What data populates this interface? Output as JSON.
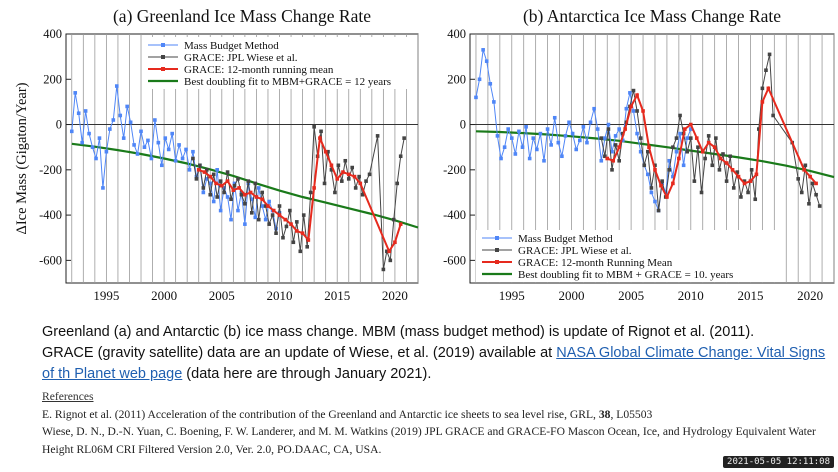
{
  "chart_data": [
    {
      "type": "line",
      "title": "(a)  Greenland Ice Mass Change Rate",
      "ylabel": "ΔIce Mass (Gigaton/Year)",
      "xlabel": "",
      "xlim": [
        1991.5,
        2022
      ],
      "ylim": [
        -700,
        400
      ],
      "xticks": [
        1995,
        2000,
        2005,
        2010,
        2015,
        2020
      ],
      "yticks": [
        400,
        200,
        0,
        -200,
        -400,
        -600
      ],
      "grid": "vertical lines each year, horizontal line at 0",
      "legend_position": "top-center",
      "series": [
        {
          "name": "Mass Budget Method",
          "color": "#4f86f7",
          "x": [
            1992.0,
            1992.3,
            1992.6,
            1992.9,
            1993.2,
            1993.5,
            1993.8,
            1994.1,
            1994.4,
            1994.7,
            1995.0,
            1995.3,
            1995.6,
            1995.9,
            1996.2,
            1996.5,
            1996.8,
            1997.1,
            1997.4,
            1997.7,
            1998.0,
            1998.3,
            1998.6,
            1998.9,
            1999.2,
            1999.5,
            1999.8,
            2000.1,
            2000.4,
            2000.7,
            2001.0,
            2001.3,
            2001.6,
            2001.9,
            2002.2,
            2002.5,
            2002.8,
            2003.1,
            2003.4,
            2003.7,
            2004.0,
            2004.3,
            2004.6,
            2004.9,
            2005.2,
            2005.5,
            2005.8,
            2006.1,
            2006.4,
            2006.7,
            2007.0,
            2007.3,
            2007.6,
            2007.9,
            2008.2,
            2008.5,
            2008.8,
            2009.1,
            2009.4,
            2009.7,
            2010.0
          ],
          "y": [
            -30,
            140,
            50,
            -80,
            60,
            -40,
            -100,
            -150,
            -60,
            -280,
            -120,
            -20,
            20,
            170,
            40,
            -60,
            80,
            10,
            -90,
            -130,
            -30,
            -100,
            -70,
            -150,
            20,
            -80,
            -180,
            -60,
            -110,
            -40,
            -160,
            -90,
            -150,
            -110,
            -200,
            -120,
            -230,
            -180,
            -300,
            -240,
            -260,
            -340,
            -200,
            -380,
            -280,
            -320,
            -420,
            -260,
            -380,
            -300,
            -440,
            -260,
            -330,
            -410,
            -280,
            -360,
            -420,
            -340,
            -380,
            -460,
            -390
          ]
        },
        {
          "name": "GRACE: JPL Wiese et al.",
          "color": "#444444",
          "x": [
            2002.5,
            2002.8,
            2003.1,
            2003.4,
            2003.7,
            2004.0,
            2004.3,
            2004.6,
            2004.9,
            2005.2,
            2005.5,
            2005.8,
            2006.1,
            2006.4,
            2006.7,
            2007.0,
            2007.3,
            2007.6,
            2007.9,
            2008.2,
            2008.5,
            2008.8,
            2009.1,
            2009.4,
            2009.7,
            2010.0,
            2010.3,
            2010.6,
            2010.9,
            2011.2,
            2011.5,
            2011.8,
            2012.1,
            2012.4,
            2012.7,
            2013.0,
            2013.3,
            2013.6,
            2013.9,
            2014.2,
            2014.5,
            2014.8,
            2015.1,
            2015.4,
            2015.7,
            2016.0,
            2016.3,
            2016.6,
            2016.9,
            2017.2,
            2017.5,
            2017.8,
            2018.5,
            2019.0,
            2019.3,
            2019.6,
            2019.9,
            2020.2,
            2020.5,
            2020.8
          ],
          "y": [
            -150,
            -240,
            -180,
            -280,
            -200,
            -310,
            -220,
            -320,
            -250,
            -300,
            -210,
            -330,
            -270,
            -240,
            -310,
            -350,
            -250,
            -390,
            -260,
            -420,
            -300,
            -360,
            -440,
            -400,
            -480,
            -360,
            -500,
            -450,
            -380,
            -520,
            -430,
            -560,
            -400,
            -540,
            -300,
            -10,
            -140,
            -30,
            -260,
            -120,
            -200,
            -300,
            -180,
            -250,
            -160,
            -240,
            -190,
            -280,
            -230,
            -310,
            -250,
            -220,
            -50,
            -640,
            -560,
            -600,
            -420,
            -260,
            -140,
            -60
          ]
        },
        {
          "name": "GRACE: 12-month running mean",
          "color": "#e62a1e",
          "x": [
            2003.0,
            2003.5,
            2004.0,
            2004.5,
            2005.0,
            2005.5,
            2006.0,
            2006.5,
            2007.0,
            2007.5,
            2008.0,
            2008.5,
            2009.0,
            2009.5,
            2010.0,
            2010.5,
            2011.0,
            2011.5,
            2012.0,
            2012.5,
            2013.0,
            2013.5,
            2014.0,
            2014.5,
            2015.0,
            2015.5,
            2016.0,
            2016.5,
            2017.0,
            2019.5,
            2020.0,
            2020.5
          ],
          "y": [
            -200,
            -210,
            -230,
            -260,
            -270,
            -250,
            -290,
            -280,
            -310,
            -300,
            -320,
            -330,
            -360,
            -380,
            -400,
            -420,
            -440,
            -470,
            -480,
            -510,
            -280,
            -60,
            -120,
            -180,
            -240,
            -210,
            -220,
            -230,
            -260,
            -560,
            -520,
            -440
          ]
        },
        {
          "name": "Best doubling fit to MBM+GRACE = 12 years",
          "color": "#1a7a1a",
          "x": [
            1992,
            1994,
            1996,
            1998,
            2000,
            2002,
            2004,
            2006,
            2008,
            2010,
            2012,
            2014,
            2016,
            2018,
            2020,
            2022
          ],
          "y": [
            -85,
            -98,
            -113,
            -130,
            -150,
            -172,
            -198,
            -227,
            -260,
            -292,
            -320,
            -345,
            -370,
            -395,
            -423,
            -455
          ]
        }
      ]
    },
    {
      "type": "line",
      "title": "(b)  Antarctica Ice Mass Change Rate",
      "ylabel": "",
      "xlabel": "",
      "xlim": [
        1991.5,
        2022
      ],
      "ylim": [
        -700,
        400
      ],
      "xticks": [
        1995,
        2000,
        2005,
        2010,
        2015,
        2020
      ],
      "yticks": [
        400,
        200,
        0,
        -200,
        -400,
        -600
      ],
      "grid": "vertical lines each year, horizontal line at 0",
      "legend_position": "bottom-center",
      "series": [
        {
          "name": "Mass Budget Method",
          "color": "#4f86f7",
          "x": [
            1992.0,
            1992.3,
            1992.6,
            1992.9,
            1993.2,
            1993.5,
            1993.8,
            1994.1,
            1994.4,
            1994.7,
            1995.0,
            1995.3,
            1995.6,
            1995.9,
            1996.2,
            1996.5,
            1996.8,
            1997.1,
            1997.4,
            1997.7,
            1998.0,
            1998.3,
            1998.6,
            1998.9,
            1999.2,
            1999.5,
            1999.8,
            2000.1,
            2000.4,
            2000.7,
            2001.0,
            2001.3,
            2001.6,
            2001.9,
            2002.2,
            2002.5,
            2002.8,
            2003.1,
            2003.4,
            2003.7,
            2004.0,
            2004.3,
            2004.6,
            2004.9,
            2005.2,
            2005.5,
            2005.8,
            2006.1,
            2006.4,
            2006.7,
            2007.0,
            2007.3,
            2007.6,
            2007.9,
            2008.2,
            2008.5,
            2008.8,
            2009.1,
            2009.4,
            2009.7,
            2010.0
          ],
          "y": [
            120,
            200,
            330,
            280,
            180,
            100,
            -50,
            -150,
            -100,
            -20,
            -60,
            -130,
            -30,
            -100,
            -10,
            -150,
            -60,
            -110,
            -40,
            -160,
            -20,
            -90,
            30,
            -80,
            -140,
            -50,
            10,
            -40,
            -110,
            -70,
            -10,
            -80,
            10,
            70,
            -20,
            -160,
            -60,
            0,
            -120,
            -50,
            -20,
            -70,
            70,
            140,
            60,
            -40,
            -120,
            -180,
            -220,
            -300,
            -340,
            -380,
            -260,
            -300,
            -160,
            -230,
            -120,
            -40,
            -180,
            -60,
            -20
          ]
        },
        {
          "name": "GRACE: JPL Wiese et al.",
          "color": "#444444",
          "x": [
            2002.5,
            2002.8,
            2003.1,
            2003.4,
            2003.7,
            2004.0,
            2004.3,
            2004.6,
            2004.9,
            2005.2,
            2005.5,
            2005.8,
            2006.1,
            2006.4,
            2006.7,
            2007.0,
            2007.3,
            2007.6,
            2007.9,
            2008.2,
            2008.5,
            2008.8,
            2009.1,
            2009.4,
            2009.7,
            2010.0,
            2010.3,
            2010.6,
            2010.9,
            2011.2,
            2011.5,
            2011.8,
            2012.1,
            2012.4,
            2012.7,
            2013.0,
            2013.3,
            2013.6,
            2013.9,
            2014.2,
            2014.5,
            2014.8,
            2015.1,
            2015.4,
            2015.7,
            2016.0,
            2016.3,
            2016.6,
            2016.9,
            2018.5,
            2019.0,
            2019.3,
            2019.6,
            2019.9,
            2020.2,
            2020.5,
            2020.8
          ],
          "y": [
            -60,
            -140,
            -20,
            -200,
            -90,
            -160,
            -40,
            10,
            80,
            150,
            60,
            -60,
            -180,
            -120,
            -280,
            -180,
            -380,
            -250,
            -320,
            -200,
            -100,
            -60,
            40,
            -40,
            -120,
            -60,
            -250,
            -100,
            -300,
            -150,
            -50,
            -180,
            -60,
            -200,
            -130,
            -250,
            -140,
            -280,
            -210,
            -320,
            -250,
            -300,
            -200,
            -330,
            -20,
            160,
            240,
            310,
            40,
            -80,
            -240,
            -300,
            -180,
            -350,
            -260,
            -310,
            -360
          ]
        },
        {
          "name": "GRACE: 12-month Running Mean",
          "color": "#e62a1e",
          "x": [
            2003.0,
            2003.5,
            2004.0,
            2004.5,
            2005.0,
            2005.5,
            2006.0,
            2006.5,
            2007.0,
            2007.5,
            2008.0,
            2008.5,
            2009.0,
            2009.5,
            2010.0,
            2010.5,
            2011.0,
            2011.5,
            2012.0,
            2012.5,
            2013.0,
            2013.5,
            2014.0,
            2014.5,
            2015.0,
            2015.5,
            2016.0,
            2016.5,
            2019.5,
            2020.0,
            2020.5
          ],
          "y": [
            -150,
            -160,
            -100,
            -20,
            80,
            130,
            60,
            -100,
            -200,
            -270,
            -320,
            -260,
            -150,
            -20,
            0,
            -60,
            -120,
            -80,
            -100,
            -150,
            -170,
            -200,
            -230,
            -260,
            -250,
            -220,
            100,
            160,
            -200,
            -230,
            -260
          ]
        },
        {
          "name": "Best doubling fit to MBM + GRACE = 10. years",
          "color": "#1a7a1a",
          "x": [
            1992,
            1994,
            1996,
            1998,
            2000,
            2002,
            2004,
            2006,
            2008,
            2010,
            2012,
            2014,
            2016,
            2018,
            2020,
            2022
          ],
          "y": [
            -30,
            -33,
            -38,
            -44,
            -52,
            -61,
            -72,
            -86,
            -100,
            -115,
            -130,
            -145,
            -162,
            -182,
            -205,
            -232
          ]
        }
      ]
    }
  ],
  "caption": {
    "line1": "Greenland (a) and Antarctic (b) ice mass change.  MBM (mass budget method) is update of Rignot et al. (2011).",
    "line2_before": "GRACE (gravity satellite) data are an update of Wiese, et al. (2019) available at ",
    "link_text": "NASA Global Climate Change: Vital Signs of th Planet web page",
    "line2_after": " (data here are through January 2021)."
  },
  "references": {
    "header": "References",
    "ref1_before": "E. Rignot et al. (2011) Acceleration of the contribution of the Greenland and Antarctic ice sheets to sea level rise, GRL, ",
    "ref1_bold": "38",
    "ref1_after": ", L05503",
    "ref2": "Wiese, D. N., D.-N. Yuan, C. Boening, F. W. Landerer, and M. M. Watkins (2019) JPL GRACE and GRACE-FO Mascon Ocean, Ice, and Hydrology Equivalent Water Height RL06M CRI Filtered Version 2.0, Ver. 2.0, PO.DAAC, CA, USA."
  },
  "timestamp": "2021-05-05 12:11:08"
}
